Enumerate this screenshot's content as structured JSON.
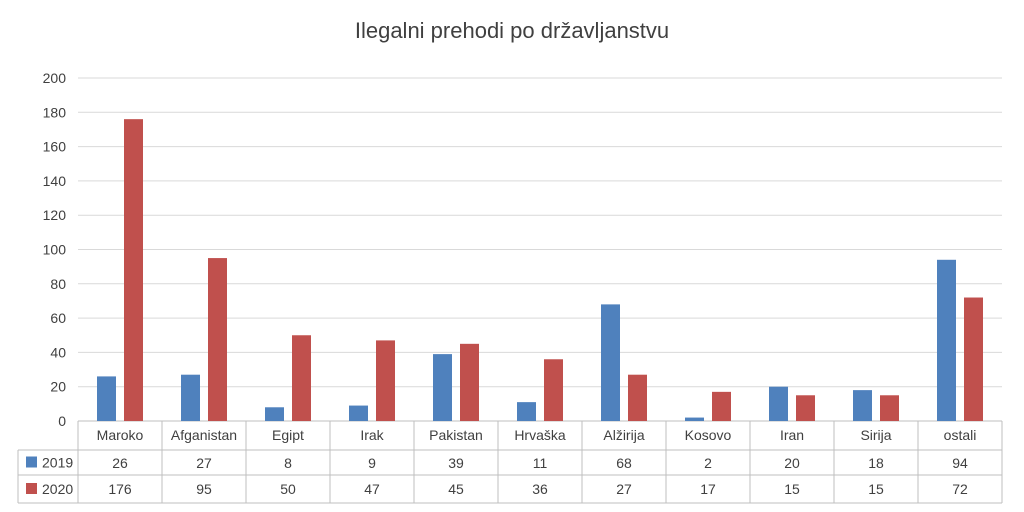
{
  "chart_data": {
    "type": "bar",
    "title": "Ilegalni prehodi po državljanstvu",
    "categories": [
      "Maroko",
      "Afganistan",
      "Egipt",
      "Irak",
      "Pakistan",
      "Hrvaška",
      "Alžirija",
      "Kosovo",
      "Iran",
      "Sirija",
      "ostali"
    ],
    "series": [
      {
        "name": "2019",
        "color": "#4f81bd",
        "values": [
          26,
          27,
          8,
          9,
          39,
          11,
          68,
          2,
          20,
          18,
          94
        ]
      },
      {
        "name": "2020",
        "color": "#c0504d",
        "values": [
          176,
          95,
          50,
          47,
          45,
          36,
          27,
          17,
          15,
          15,
          72
        ]
      }
    ],
    "ylim": [
      0,
      200
    ],
    "yticks": [
      "0",
      "20",
      "40",
      "60",
      "80",
      "100",
      "120",
      "140",
      "160",
      "180",
      "200"
    ],
    "grid": true,
    "data_table": true
  }
}
